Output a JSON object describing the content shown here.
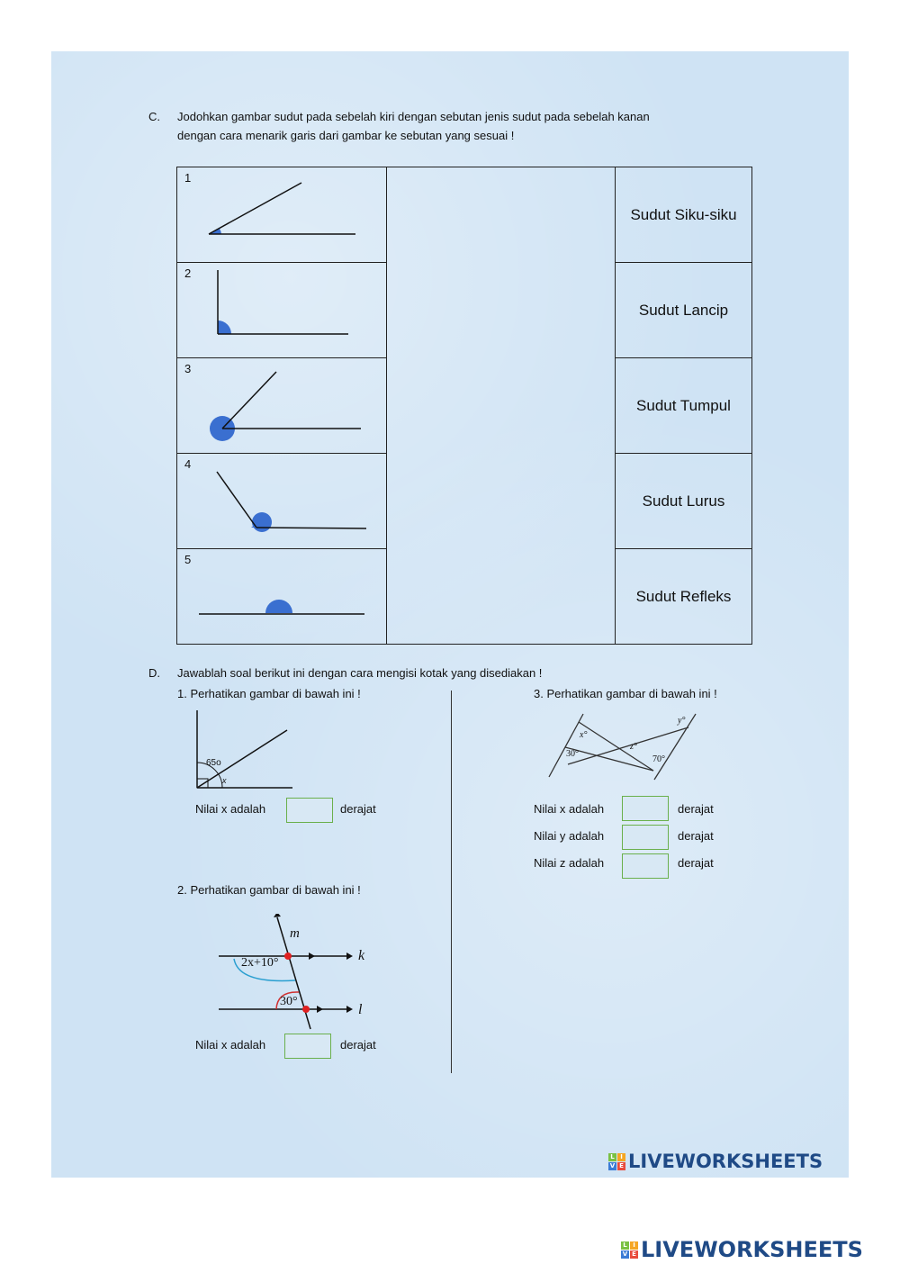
{
  "sectionC": {
    "letter": "C.",
    "instruction_line1": "Jodohkan gambar sudut pada sebelah kiri dengan sebutan jenis sudut pada sebelah kanan",
    "instruction_line2": "dengan cara menarik garis dari gambar ke sebutan yang sesuai !",
    "rows": [
      {
        "num": "1",
        "label": "Sudut Siku-siku"
      },
      {
        "num": "2",
        "label": "Sudut Lancip"
      },
      {
        "num": "3",
        "label": "Sudut Tumpul"
      },
      {
        "num": "4",
        "label": "Sudut Lurus"
      },
      {
        "num": "5",
        "label": "Sudut Refleks"
      }
    ],
    "angle_fill": "#3a6fd0"
  },
  "sectionD": {
    "letter": "D.",
    "instruction": "Jawablah soal berikut ini dengan cara mengisi kotak yang disediakan !",
    "q1": {
      "title": "1.  Perhatikan gambar di bawah ini !",
      "angle_label": "65o",
      "x_label": "x",
      "answer_label": "Nilai x adalah",
      "unit": "derajat",
      "value": ""
    },
    "q2": {
      "title": "2.  Perhatikan gambar di bawah ini !",
      "m": "m",
      "k": "k",
      "l": "l",
      "angle1": "2x+10°",
      "angle2": "30°",
      "answer_label": "Nilai x adalah",
      "unit": "derajat",
      "value": ""
    },
    "q3": {
      "title": "3. Perhatikan gambar di bawah ini !",
      "x": "x°",
      "y": "y°",
      "z": "z°",
      "a30": "30°",
      "a70": "70°",
      "answers": [
        {
          "label": "Nilai x adalah",
          "unit": "derajat",
          "value": ""
        },
        {
          "label": "Nilai y adalah",
          "unit": "derajat",
          "value": ""
        },
        {
          "label": "Nilai z adalah",
          "unit": "derajat",
          "value": ""
        }
      ]
    }
  },
  "logo": {
    "text": "LIVEWORKSHEETS",
    "tiles": [
      "L",
      "I",
      "V",
      "E"
    ],
    "color": "#1f4a86"
  }
}
